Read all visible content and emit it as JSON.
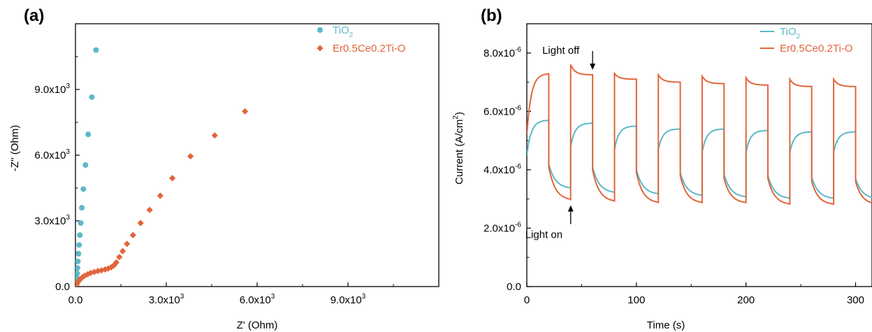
{
  "chart_data": [
    {
      "type": "scatter",
      "panel_label": "(a)",
      "xlabel": "Z' (Ohm)",
      "ylabel": "-Z'' (Ohm)",
      "xlim": [
        0,
        12000
      ],
      "ylim": [
        0,
        12000
      ],
      "x_ticks": [
        {
          "value": 0,
          "label": "0.0"
        },
        {
          "value": 3000,
          "label": "3.0x10",
          "exp": "3"
        },
        {
          "value": 6000,
          "label": "6.0x10",
          "exp": "3"
        },
        {
          "value": 9000,
          "label": "9.0x10",
          "exp": "3"
        }
      ],
      "y_ticks": [
        {
          "value": 0,
          "label": "0.0"
        },
        {
          "value": 3000,
          "label": "3.0x10",
          "exp": "3"
        },
        {
          "value": 6000,
          "label": "6.0x10",
          "exp": "3"
        },
        {
          "value": 9000,
          "label": "9.0x10",
          "exp": "3"
        }
      ],
      "legend_position": "top-right",
      "series": [
        {
          "name": "TiO",
          "name_sub": "2",
          "color": "#5bb8c8",
          "marker": "circle",
          "points": [
            [
              20,
              40
            ],
            [
              25,
              120
            ],
            [
              35,
              250
            ],
            [
              45,
              400
            ],
            [
              55,
              600
            ],
            [
              65,
              850
            ],
            [
              80,
              1150
            ],
            [
              100,
              1500
            ],
            [
              120,
              1900
            ],
            [
              145,
              2350
            ],
            [
              175,
              2900
            ],
            [
              210,
              3600
            ],
            [
              260,
              4450
            ],
            [
              330,
              5550
            ],
            [
              420,
              6950
            ],
            [
              540,
              8650
            ],
            [
              680,
              10800
            ]
          ]
        },
        {
          "name": "Er0.5Ce0.2Ti-O",
          "color": "#e0663a",
          "marker": "diamond",
          "points": [
            [
              30,
              80
            ],
            [
              60,
              160
            ],
            [
              100,
              240
            ],
            [
              150,
              330
            ],
            [
              220,
              410
            ],
            [
              300,
              490
            ],
            [
              400,
              560
            ],
            [
              500,
              620
            ],
            [
              620,
              670
            ],
            [
              740,
              710
            ],
            [
              860,
              740
            ],
            [
              980,
              780
            ],
            [
              1080,
              820
            ],
            [
              1180,
              880
            ],
            [
              1270,
              970
            ],
            [
              1350,
              1100
            ],
            [
              1450,
              1350
            ],
            [
              1560,
              1620
            ],
            [
              1700,
              1950
            ],
            [
              1900,
              2350
            ],
            [
              2150,
              2900
            ],
            [
              2450,
              3500
            ],
            [
              2800,
              4150
            ],
            [
              3200,
              4950
            ],
            [
              3800,
              5950
            ],
            [
              4600,
              6900
            ],
            [
              5600,
              8000
            ]
          ]
        }
      ]
    },
    {
      "type": "line",
      "panel_label": "(b)",
      "xlabel": "Time (s)",
      "ylabel": "Current (A/cm",
      "ylabel_sup": "2",
      "ylabel_end": ")",
      "xlim": [
        0,
        315
      ],
      "ylim": [
        0,
        9e-06
      ],
      "x_ticks": [
        {
          "value": 0,
          "label": "0"
        },
        {
          "value": 100,
          "label": "100"
        },
        {
          "value": 200,
          "label": "200"
        },
        {
          "value": 300,
          "label": "300"
        }
      ],
      "y_ticks": [
        {
          "value": 0,
          "label": "0.0"
        },
        {
          "value": 2e-06,
          "label": "2.0x10",
          "exp": "-6"
        },
        {
          "value": 4e-06,
          "label": "4.0x10",
          "exp": "-6"
        },
        {
          "value": 6e-06,
          "label": "6.0x10",
          "exp": "-6"
        },
        {
          "value": 8e-06,
          "label": "8.0x10",
          "exp": "-6"
        }
      ],
      "legend_position": "top-right",
      "annotations": [
        {
          "text": "Light off",
          "x": 60,
          "y": 7.3e-06
        },
        {
          "text": "Light on",
          "x": 40,
          "y": 3e-06
        }
      ],
      "cycle": {
        "period_s": 40,
        "on_duration_s": 20,
        "first_on_s": 0,
        "first_off_s": 20
      },
      "series": [
        {
          "name": "TiO",
          "name_sub": "2",
          "color": "#5bb8c8",
          "on_start": [
            4.5e-06,
            4.8e-06,
            4.7e-06,
            4.7e-06,
            4.6e-06,
            4.6e-06,
            4.6e-06,
            4.6e-06
          ],
          "on_end": [
            5.7e-06,
            5.6e-06,
            5.5e-06,
            5.4e-06,
            5.4e-06,
            5.35e-06,
            5.3e-06,
            5.3e-06
          ],
          "off_drop": [
            4.2e-06,
            4.1e-06,
            4e-06,
            3.9e-06,
            3.85e-06,
            3.8e-06,
            3.75e-06,
            3.7e-06
          ],
          "off_end": [
            3.35e-06,
            3.2e-06,
            3.15e-06,
            3.1e-06,
            3.05e-06,
            3e-06,
            3e-06,
            3e-06
          ]
        },
        {
          "name": "Er0.5Ce0.2Ti-O",
          "color": "#e0663a",
          "on_start": [
            5.2e-06,
            7.6e-06,
            7.3e-06,
            7.25e-06,
            7.2e-06,
            7.15e-06,
            7.1e-06,
            7.1e-06
          ],
          "on_end": [
            7.3e-06,
            7.25e-06,
            7.1e-06,
            7e-06,
            6.95e-06,
            6.9e-06,
            6.85e-06,
            6.85e-06
          ],
          "off_drop": [
            4.1e-06,
            4e-06,
            3.9e-06,
            3.8e-06,
            3.7e-06,
            3.7e-06,
            3.6e-06,
            3.6e-06
          ],
          "off_end": [
            2.95e-06,
            2.9e-06,
            2.85e-06,
            2.85e-06,
            2.85e-06,
            2.8e-06,
            2.8e-06,
            2.8e-06
          ]
        }
      ]
    }
  ]
}
